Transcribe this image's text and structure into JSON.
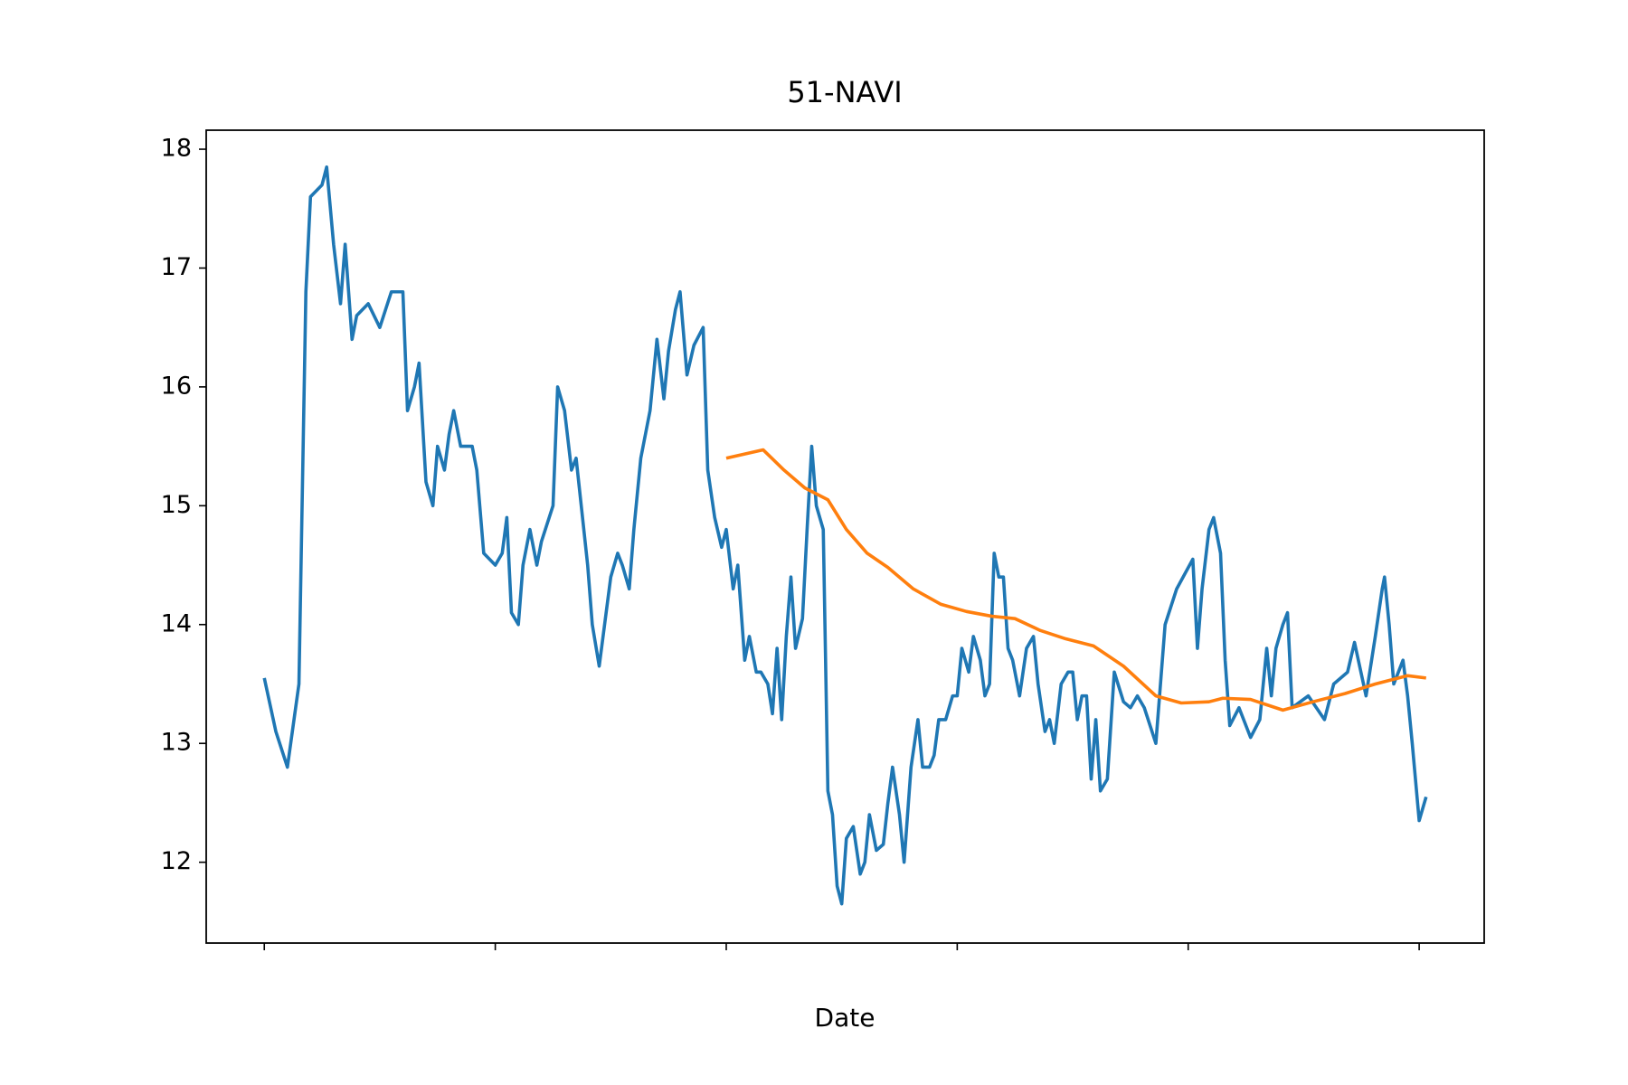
{
  "chart_data": {
    "type": "line",
    "title": "51-NAVI",
    "x_label": "Date",
    "xlim": [
      -25.15,
      528.15
    ],
    "xticks": [
      0,
      100,
      200,
      300,
      400,
      500
    ],
    "ylim": [
      11.32,
      18.16
    ],
    "yticks": [
      12,
      13,
      14,
      15,
      16,
      17,
      18
    ],
    "grid": false,
    "series": [
      {
        "color": "#1f77b4",
        "x": [
          0,
          5,
          10,
          15,
          18,
          20,
          25,
          27,
          30,
          33,
          35,
          38,
          40,
          45,
          50,
          55,
          60,
          62,
          65,
          67,
          70,
          73,
          75,
          78,
          80,
          82,
          85,
          90,
          92,
          95,
          100,
          103,
          105,
          107,
          110,
          112,
          115,
          118,
          120,
          125,
          127,
          130,
          133,
          135,
          140,
          142,
          145,
          150,
          153,
          155,
          158,
          160,
          163,
          167,
          170,
          173,
          175,
          178,
          180,
          183,
          186,
          190,
          192,
          195,
          198,
          200,
          203,
          205,
          208,
          210,
          213,
          215,
          218,
          220,
          222,
          224,
          226,
          228,
          230,
          233,
          235,
          237,
          239,
          242,
          244,
          246,
          248,
          250,
          252,
          255,
          258,
          260,
          262,
          265,
          268,
          270,
          272,
          275,
          277,
          280,
          283,
          285,
          288,
          290,
          292,
          295,
          298,
          300,
          302,
          305,
          307,
          310,
          312,
          314,
          316,
          318,
          320,
          322,
          324,
          327,
          330,
          333,
          335,
          338,
          340,
          342,
          345,
          348,
          350,
          352,
          354,
          356,
          358,
          360,
          362,
          365,
          368,
          372,
          375,
          378,
          381,
          386,
          390,
          395,
          402,
          404,
          406,
          409,
          411,
          414,
          416,
          418,
          422,
          427,
          431,
          434,
          436,
          438,
          441,
          443,
          445,
          452,
          459,
          463,
          469,
          472,
          477,
          481,
          484,
          485,
          487,
          489,
          493,
          495,
          497,
          500,
          503
        ],
        "values": [
          13.55,
          13.1,
          12.8,
          13.5,
          16.8,
          17.6,
          17.7,
          17.85,
          17.2,
          16.7,
          17.2,
          16.4,
          16.6,
          16.7,
          16.5,
          16.8,
          16.8,
          15.8,
          16.0,
          16.2,
          15.2,
          15.0,
          15.5,
          15.3,
          15.6,
          15.8,
          15.5,
          15.5,
          15.3,
          14.6,
          14.5,
          14.6,
          14.9,
          14.1,
          14.0,
          14.5,
          14.8,
          14.5,
          14.7,
          15.0,
          16.0,
          15.8,
          15.3,
          15.4,
          14.5,
          14.0,
          13.65,
          14.4,
          14.6,
          14.5,
          14.3,
          14.8,
          15.4,
          15.8,
          16.4,
          15.9,
          16.3,
          16.65,
          16.8,
          16.1,
          16.35,
          16.5,
          15.3,
          14.9,
          14.65,
          14.8,
          14.3,
          14.5,
          13.7,
          13.9,
          13.6,
          13.6,
          13.5,
          13.25,
          13.8,
          13.2,
          13.9,
          14.4,
          13.8,
          14.05,
          14.8,
          15.5,
          15.0,
          14.8,
          12.6,
          12.4,
          11.8,
          11.65,
          12.2,
          12.3,
          11.9,
          12.0,
          12.4,
          12.1,
          12.15,
          12.5,
          12.8,
          12.4,
          12.0,
          12.8,
          13.2,
          12.8,
          12.8,
          12.9,
          13.2,
          13.2,
          13.4,
          13.4,
          13.8,
          13.6,
          13.9,
          13.7,
          13.4,
          13.5,
          14.6,
          14.4,
          14.4,
          13.8,
          13.7,
          13.4,
          13.8,
          13.9,
          13.5,
          13.1,
          13.2,
          13.0,
          13.5,
          13.6,
          13.6,
          13.2,
          13.4,
          13.4,
          12.7,
          13.2,
          12.6,
          12.7,
          13.6,
          13.35,
          13.3,
          13.4,
          13.3,
          13.0,
          14.0,
          14.3,
          14.55,
          13.8,
          14.3,
          14.8,
          14.9,
          14.6,
          13.7,
          13.15,
          13.3,
          13.05,
          13.2,
          13.8,
          13.4,
          13.8,
          14.0,
          14.1,
          13.3,
          13.4,
          13.2,
          13.5,
          13.6,
          13.85,
          13.4,
          13.9,
          14.3,
          14.4,
          14.0,
          13.5,
          13.7,
          13.4,
          13.0,
          12.35,
          12.55
        ]
      },
      {
        "color": "#ff7f0e",
        "x": [
          200,
          216,
          225,
          234,
          244,
          252,
          261,
          270,
          281,
          293,
          304,
          315,
          325,
          336,
          347,
          359,
          372,
          386,
          397,
          409,
          415,
          427,
          441,
          454,
          468,
          481,
          495,
          503
        ],
        "values": [
          15.4,
          15.47,
          15.3,
          15.15,
          15.05,
          14.8,
          14.6,
          14.48,
          14.3,
          14.17,
          14.11,
          14.07,
          14.05,
          13.95,
          13.88,
          13.82,
          13.65,
          13.4,
          13.34,
          13.35,
          13.38,
          13.37,
          13.28,
          13.35,
          13.42,
          13.5,
          13.57,
          13.55
        ]
      }
    ]
  }
}
